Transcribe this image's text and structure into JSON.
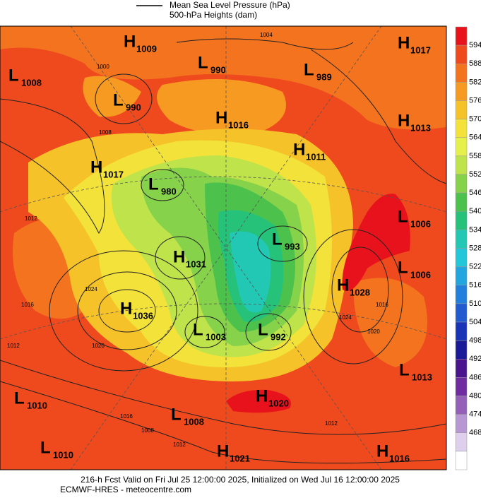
{
  "legend": {
    "entries": [
      "Mean Sea Level Pressure (hPa)",
      "500-hPa Heights (dam)"
    ]
  },
  "colorbar": {
    "ticks": [
      594,
      588,
      582,
      576,
      570,
      564,
      558,
      552,
      546,
      540,
      534,
      528,
      522,
      516,
      510,
      504,
      498,
      492,
      486,
      480,
      474,
      468
    ],
    "colors": [
      "#e8121c",
      "#ef4a1e",
      "#f3731f",
      "#f79a22",
      "#f6c22a",
      "#f2e23a",
      "#e6f04a",
      "#bfe34a",
      "#86d24a",
      "#4cc24c",
      "#26c27a",
      "#22c8b4",
      "#22c8d8",
      "#22a6e0",
      "#2280dc",
      "#225ad0",
      "#1a34b8",
      "#1a1a98",
      "#4a148e",
      "#6e2ca0",
      "#9460b8",
      "#b898d2",
      "#ded0ec",
      "#ffffff"
    ]
  },
  "pressure_centers": [
    {
      "type": "H",
      "value": "1009"
    },
    {
      "type": "L",
      "value": "990"
    },
    {
      "type": "L",
      "value": "989"
    },
    {
      "type": "H",
      "value": "1017"
    },
    {
      "type": "L",
      "value": "1008"
    },
    {
      "type": "L",
      "value": "990"
    },
    {
      "type": "H",
      "value": "1016"
    },
    {
      "type": "H",
      "value": "1013"
    },
    {
      "type": "H",
      "value": "1011"
    },
    {
      "type": "H",
      "value": "1017"
    },
    {
      "type": "L",
      "value": "980"
    },
    {
      "type": "L",
      "value": "1006"
    },
    {
      "type": "L",
      "value": "993"
    },
    {
      "type": "H",
      "value": "1031"
    },
    {
      "type": "L",
      "value": "1006"
    },
    {
      "type": "H",
      "value": "1028"
    },
    {
      "type": "H",
      "value": "1036"
    },
    {
      "type": "L",
      "value": "1003"
    },
    {
      "type": "L",
      "value": "992"
    },
    {
      "type": "L",
      "value": "1013"
    },
    {
      "type": "L",
      "value": "1010"
    },
    {
      "type": "H",
      "value": "1020"
    },
    {
      "type": "L",
      "value": "1008"
    },
    {
      "type": "L",
      "value": "1010"
    },
    {
      "type": "H",
      "value": "1021"
    },
    {
      "type": "H",
      "value": "1016"
    }
  ],
  "contour_labels": [
    "1004",
    "1000",
    "1008",
    "1012",
    "1024",
    "1016",
    "1020",
    "1012",
    "1016",
    "1024",
    "1016",
    "1020",
    "1012",
    "1008",
    "1012"
  ],
  "footer": {
    "line1": "216-h Fcst Valid on Fri Jul 25 12:00:00 2025, Initialized on Wed Jul 16 12:00:00 2025",
    "line2": "ECMWF-HRES - meteocentre.com"
  }
}
